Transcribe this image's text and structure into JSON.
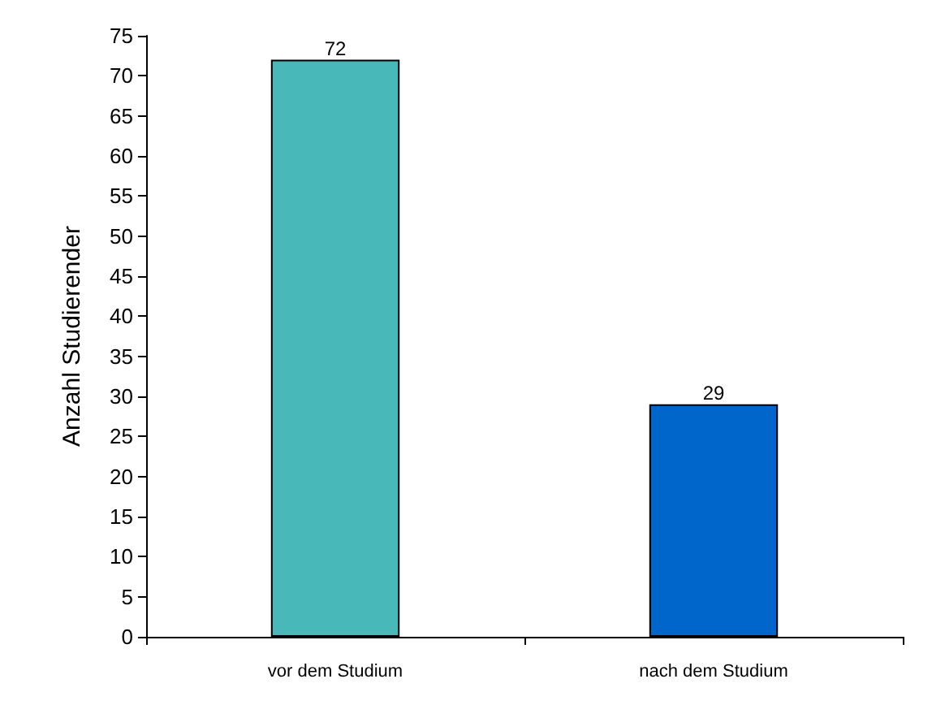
{
  "chart_data": {
    "type": "bar",
    "ylabel": "Anzahl Studierender",
    "categories": [
      "vor dem Studium",
      "nach dem Studium"
    ],
    "values": [
      72,
      29
    ],
    "colors": [
      "#48b8b8",
      "#0066cc"
    ],
    "ylim": [
      0,
      75
    ],
    "yticks": [
      0,
      5,
      10,
      15,
      20,
      25,
      30,
      35,
      40,
      45,
      50,
      55,
      60,
      65,
      70,
      75
    ],
    "data_labels": true,
    "grid": false,
    "legend": false
  }
}
